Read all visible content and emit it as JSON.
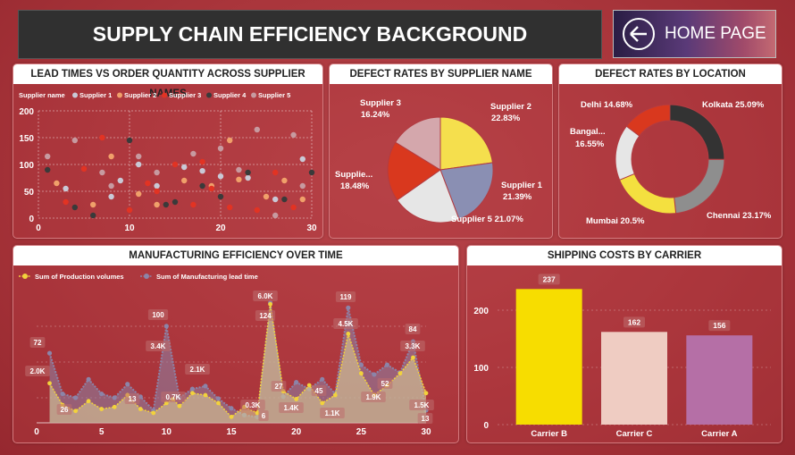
{
  "page_title": "SUPPLY CHAIN EFFICIENCY BACKGROUND",
  "home_button": {
    "label": "HOME PAGE",
    "icon": "arrow-left-circle-icon"
  },
  "panels": {
    "scatter_title": "LEAD TIMES VS ORDER QUANTITY ACROSS SUPPLIER NAMES",
    "defect_supplier_title": "DEFECT RATES BY SUPPLIER NAME",
    "defect_location_title": "DEFECT RATES BY LOCATION",
    "mfg_title": "MANUFACTURING EFFICIENCY OVER TIME",
    "shipping_title": "SHIPPING COSTS BY CARRIER"
  },
  "chart_data": [
    {
      "type": "scatter",
      "legend_title": "Supplier name",
      "legend_position": "top-left",
      "xlim": [
        0,
        30
      ],
      "ylim": [
        0,
        200
      ],
      "xticks": [
        "0",
        "10",
        "20",
        "30"
      ],
      "yticks": [
        "0",
        "50",
        "100",
        "150",
        "200"
      ],
      "grid": true,
      "series": [
        {
          "name": "Supplier 1",
          "color": "#c9c9d6",
          "points": [
            [
              9,
              70
            ],
            [
              13,
              60
            ],
            [
              20,
              78
            ],
            [
              16,
              95
            ],
            [
              23,
              75
            ],
            [
              8,
              40
            ],
            [
              26,
              35
            ],
            [
              11,
              100
            ],
            [
              18,
              88
            ],
            [
              3,
              55
            ],
            [
              29,
              110
            ]
          ]
        },
        {
          "name": "Supplier 2",
          "color": "#f0a06a",
          "points": [
            [
              2,
              65
            ],
            [
              11,
              45
            ],
            [
              8,
              115
            ],
            [
              16,
              70
            ],
            [
              21,
              145
            ],
            [
              13,
              25
            ],
            [
              25,
              40
            ],
            [
              19,
              60
            ],
            [
              27,
              70
            ],
            [
              29,
              35
            ],
            [
              6,
              25
            ],
            [
              22,
              72
            ]
          ]
        },
        {
          "name": "Supplier 3",
          "color": "#e23323",
          "points": [
            [
              3,
              30
            ],
            [
              7,
              150
            ],
            [
              10,
              15
            ],
            [
              12,
              65
            ],
            [
              15,
              100
            ],
            [
              17,
              25
            ],
            [
              19,
              55
            ],
            [
              24,
              15
            ],
            [
              26,
              85
            ],
            [
              28,
              20
            ],
            [
              5,
              92
            ],
            [
              13,
              50
            ],
            [
              18,
              105
            ],
            [
              21,
              20
            ]
          ]
        },
        {
          "name": "Supplier 4",
          "color": "#3a3a3a",
          "points": [
            [
              1,
              90
            ],
            [
              6,
              5
            ],
            [
              10,
              145
            ],
            [
              14,
              25
            ],
            [
              18,
              60
            ],
            [
              20,
              40
            ],
            [
              23,
              85
            ],
            [
              27,
              35
            ],
            [
              30,
              85
            ],
            [
              4,
              20
            ],
            [
              15,
              30
            ]
          ]
        },
        {
          "name": "Supplier 5",
          "color": "#c79aa0",
          "points": [
            [
              1,
              115
            ],
            [
              4,
              145
            ],
            [
              8,
              60
            ],
            [
              13,
              85
            ],
            [
              17,
              120
            ],
            [
              20,
              130
            ],
            [
              24,
              165
            ],
            [
              26,
              5
            ],
            [
              28,
              155
            ],
            [
              29,
              60
            ],
            [
              11,
              115
            ],
            [
              22,
              90
            ],
            [
              7,
              85
            ]
          ]
        }
      ]
    },
    {
      "type": "pie",
      "title": "DEFECT RATES BY SUPPLIER NAME",
      "slices": [
        {
          "label": "Supplier 2",
          "value": 22.83,
          "text": "22.83%",
          "color": "#f5df4d"
        },
        {
          "label": "Supplier 1",
          "value": 21.39,
          "text": "21.39%",
          "color": "#8a8fb3"
        },
        {
          "label": "Supplier 5",
          "value": 21.07,
          "text": "21.07%",
          "color": "#e6e6e6"
        },
        {
          "label": "Supplie...",
          "value": 18.48,
          "text": "18.48%",
          "color": "#d9381e"
        },
        {
          "label": "Supplier 3",
          "value": 16.24,
          "text": "16.24%",
          "color": "#d4a7ac"
        }
      ]
    },
    {
      "type": "donut",
      "title": "DEFECT RATES BY LOCATION",
      "slices": [
        {
          "label": "Kolkata",
          "value": 25.09,
          "text": "25.09%",
          "color": "#333333"
        },
        {
          "label": "Chennai",
          "value": 23.17,
          "text": "23.17%",
          "color": "#8e8e8e"
        },
        {
          "label": "Mumbai",
          "value": 20.5,
          "text": "20.5%",
          "color": "#f4e03f"
        },
        {
          "label": "Bangal...",
          "value": 16.55,
          "text": "16.55%",
          "color": "#e6e6e6"
        },
        {
          "label": "Delhi",
          "value": 14.68,
          "text": "14.68%",
          "color": "#d9381e"
        }
      ]
    },
    {
      "type": "area",
      "title": "MANUFACTURING EFFICIENCY OVER TIME",
      "xlim": [
        0,
        30
      ],
      "xticks": [
        "0",
        "5",
        "10",
        "15",
        "20",
        "25",
        "30"
      ],
      "series": [
        {
          "name": "Sum of Production volumes",
          "color": "#f2d23c",
          "values": [
            [
              1,
              2000
            ],
            [
              2,
              900
            ],
            [
              3,
              600
            ],
            [
              4,
              1100
            ],
            [
              5,
              700
            ],
            [
              6,
              800
            ],
            [
              7,
              1400
            ],
            [
              8,
              700
            ],
            [
              9,
              500
            ],
            [
              10,
              1000
            ],
            [
              10.5,
              1200
            ],
            [
              11,
              850
            ],
            [
              12,
              1500
            ],
            [
              13,
              1400
            ],
            [
              14,
              1000
            ],
            [
              15,
              300
            ],
            [
              16,
              800
            ],
            [
              17,
              500
            ],
            [
              18,
              6000
            ],
            [
              19,
              1600
            ],
            [
              20,
              1200
            ],
            [
              21,
              1900
            ],
            [
              22,
              1000
            ],
            [
              23,
              1400
            ],
            [
              24,
              4500
            ],
            [
              25,
              2500
            ],
            [
              26,
              1400
            ],
            [
              27,
              1900
            ],
            [
              28,
              2500
            ],
            [
              29,
              3300
            ],
            [
              30,
              1500
            ]
          ]
        },
        {
          "name": "Sum of Manufacturing lead time",
          "color": "#8c84a8",
          "values": [
            [
              1,
              72
            ],
            [
              2,
              30
            ],
            [
              3,
              26
            ],
            [
              4,
              45
            ],
            [
              5,
              30
            ],
            [
              6,
              26
            ],
            [
              7,
              40
            ],
            [
              8,
              27
            ],
            [
              9,
              13
            ],
            [
              10,
              100
            ],
            [
              11,
              26
            ],
            [
              12,
              35
            ],
            [
              13,
              38
            ],
            [
              14,
              25
            ],
            [
              15,
              15
            ],
            [
              16,
              8
            ],
            [
              17,
              6
            ],
            [
              18,
              124
            ],
            [
              19,
              27
            ],
            [
              20,
              42
            ],
            [
              21,
              35
            ],
            [
              22,
              45
            ],
            [
              23,
              30
            ],
            [
              24,
              119
            ],
            [
              25,
              60
            ],
            [
              26,
              50
            ],
            [
              27,
              60
            ],
            [
              28,
              52
            ],
            [
              29,
              84
            ],
            [
              30,
              13
            ]
          ]
        }
      ],
      "data_labels": {
        "production": [
          "2.0K",
          "0.7K",
          "3.4K",
          "2.1K",
          "0.3K",
          "6.0K",
          "1.4K",
          "1.1K",
          "4.5K",
          "1.9K",
          "3.3K",
          "1.5K"
        ],
        "lead_time": [
          "72",
          "26",
          "13",
          "100",
          "6",
          "124",
          "27",
          "45",
          "119",
          "52",
          "84",
          "13"
        ]
      }
    },
    {
      "type": "bar",
      "title": "SHIPPING COSTS BY CARRIER",
      "categories": [
        "Carrier B",
        "Carrier C",
        "Carrier A"
      ],
      "values": [
        237,
        162,
        156
      ],
      "labels": [
        "237",
        "162",
        "156"
      ],
      "colors": [
        "#f7dd00",
        "#efccc2",
        "#b56fa6"
      ],
      "ylim": [
        0,
        250
      ],
      "yticks": [
        "0",
        "100",
        "200"
      ]
    }
  ]
}
